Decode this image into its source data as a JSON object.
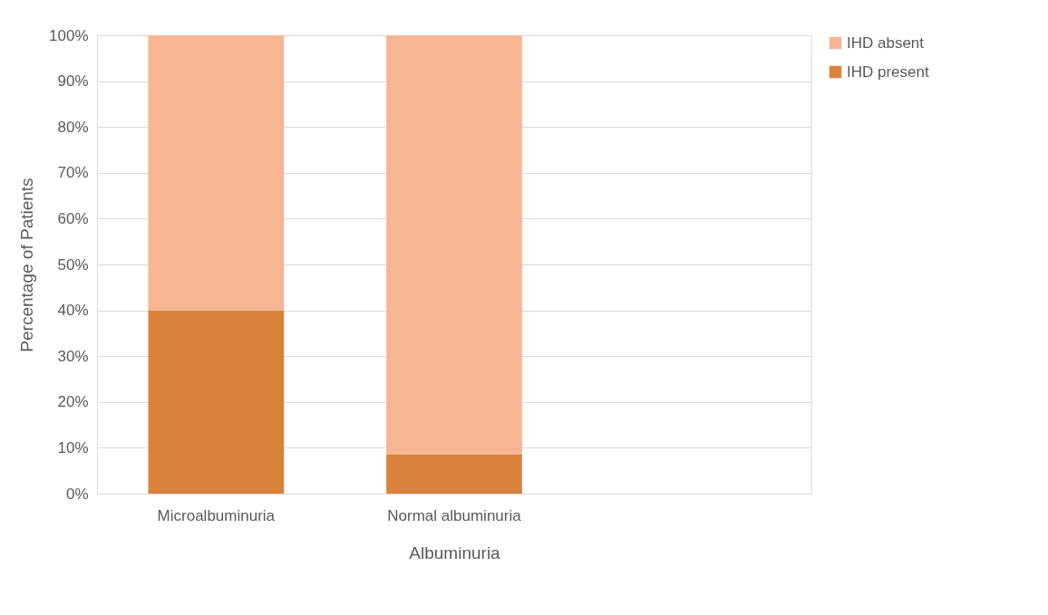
{
  "chart_data": {
    "type": "bar",
    "stacked": true,
    "xlabel": "Albuminuria",
    "ylabel": "Percentage of Patients",
    "categories": [
      "Microalbuminuria",
      "Normal albuminuria",
      null
    ],
    "series": [
      {
        "name": "IHD present",
        "color": "#d9823b",
        "values": [
          40,
          8.5,
          null
        ]
      },
      {
        "name": "IHD absent",
        "color": "#f7b593",
        "values": [
          60,
          91.5,
          null
        ]
      }
    ],
    "ylim": [
      0,
      100
    ],
    "yticks": [
      {
        "value": 0,
        "label": "0%"
      },
      {
        "value": 10,
        "label": "10%"
      },
      {
        "value": 20,
        "label": "20%"
      },
      {
        "value": 30,
        "label": "30%"
      },
      {
        "value": 40,
        "label": "40%"
      },
      {
        "value": 50,
        "label": "50%"
      },
      {
        "value": 60,
        "label": "60%"
      },
      {
        "value": 70,
        "label": "70%"
      },
      {
        "value": 80,
        "label": "80%"
      },
      {
        "value": 90,
        "label": "90%"
      },
      {
        "value": 100,
        "label": "100%"
      }
    ],
    "grid": "y",
    "legend": "right"
  }
}
